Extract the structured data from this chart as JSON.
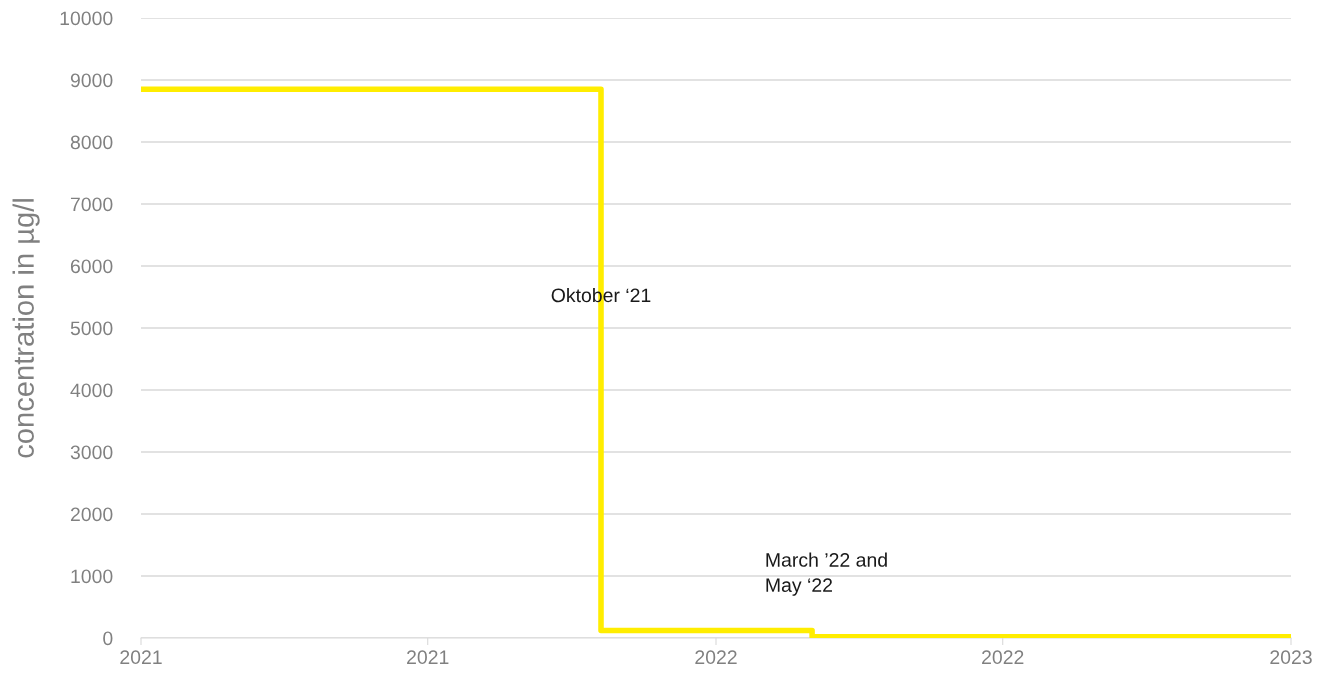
{
  "chart_data": {
    "type": "step",
    "ylabel": "concentration in µg/l",
    "x": [
      "2021-01-01",
      "2021-10-20",
      "2022-03-03",
      "2023-01-01"
    ],
    "series": [
      {
        "color": "#ffed00",
        "values": [
          8850,
          120,
          20,
          20
        ]
      }
    ],
    "xlim": [
      "2021-01-01",
      "2023-01-01"
    ],
    "xticks": [
      {
        "value": "2021-01-01",
        "label": "2021"
      },
      {
        "value": "2021-07-02",
        "label": "2021"
      },
      {
        "value": "2022-01-01",
        "label": "2022"
      },
      {
        "value": "2022-07-02",
        "label": "2022"
      },
      {
        "value": "2023-01-01",
        "label": "2023"
      }
    ],
    "ylim": [
      0,
      10000
    ],
    "yticks": [
      0,
      1000,
      2000,
      3000,
      4000,
      5000,
      6000,
      7000,
      8000,
      9000,
      10000
    ],
    "grid": "y",
    "marker": "none",
    "line_style": "solid",
    "annotations": [
      {
        "text": "Oktober ‘21",
        "x": "2021-10-20",
        "y": 5500
      },
      {
        "text": "March ’22 and\nMay ‘22",
        "x": "2022-03-03",
        "y": 120
      }
    ]
  }
}
